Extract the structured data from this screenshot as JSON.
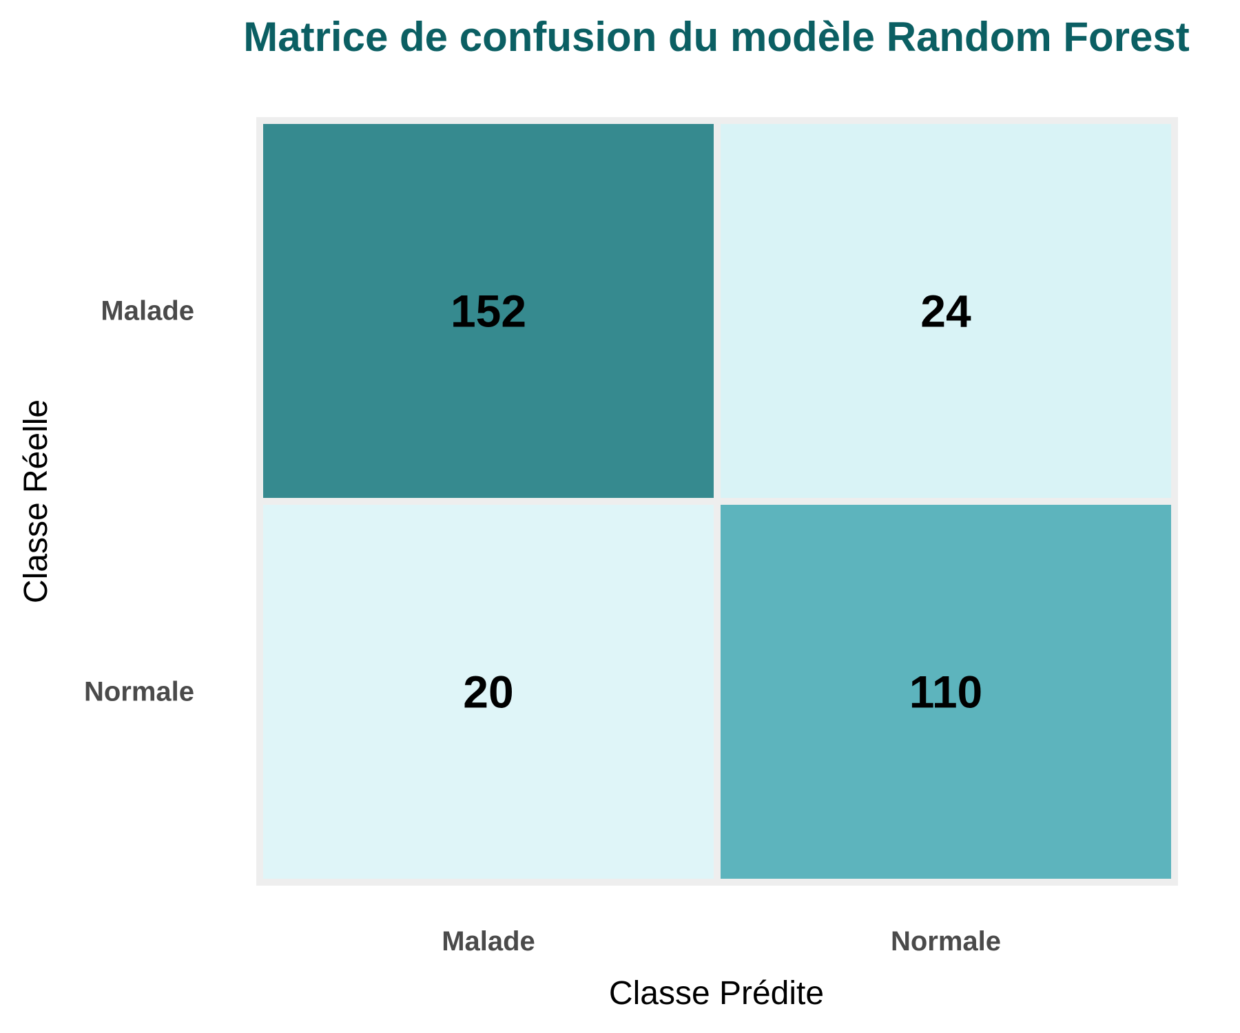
{
  "chart_data": {
    "type": "heatmap",
    "title": "Matrice de confusion du modèle Random Forest",
    "xlabel": "Classe Prédite",
    "ylabel": "Classe Réelle",
    "x_categories": [
      "Malade",
      "Normale"
    ],
    "y_categories": [
      "Malade",
      "Normale"
    ],
    "values": [
      [
        152,
        24
      ],
      [
        20,
        110
      ]
    ],
    "grid": false,
    "colors": {
      "title": "#0b5f63",
      "high": "#368a8f",
      "mid": "#74ccd8",
      "low": "#dff5f8",
      "panel": "#eeeeee",
      "tick": "#4a4a4a",
      "cell_text": "#000000"
    }
  }
}
